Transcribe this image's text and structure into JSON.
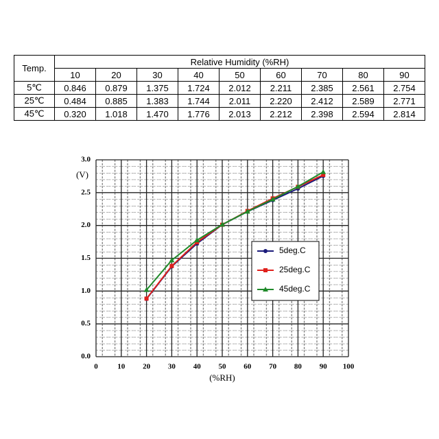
{
  "table": {
    "corner": "Temp.",
    "group_header": "Relative Humidity  (%RH)",
    "columns": [
      "10",
      "20",
      "30",
      "40",
      "50",
      "60",
      "70",
      "80",
      "90"
    ],
    "rows": [
      {
        "label": "5℃",
        "cells": [
          "0.846",
          "0.879",
          "1.375",
          "1.724",
          "2.012",
          "2.211",
          "2.385",
          "2.561",
          "2.754"
        ]
      },
      {
        "label": "25℃",
        "cells": [
          "0.484",
          "0.885",
          "1.383",
          "1.744",
          "2.011",
          "2.220",
          "2.412",
          "2.589",
          "2.771"
        ]
      },
      {
        "label": "45℃",
        "cells": [
          "0.320",
          "1.018",
          "1.470",
          "1.776",
          "2.013",
          "2.212",
          "2.398",
          "2.594",
          "2.814"
        ]
      }
    ]
  },
  "chart_data": {
    "type": "line",
    "y_label": "(V)",
    "x_label": "(%RH)",
    "x": [
      20,
      30,
      40,
      50,
      60,
      70,
      80,
      90
    ],
    "series": [
      {
        "name": "5deg.C",
        "color": "#1a1a7a",
        "marker": "circle",
        "values": [
          0.879,
          1.375,
          1.724,
          2.012,
          2.211,
          2.385,
          2.561,
          2.754
        ]
      },
      {
        "name": "25deg.C",
        "color": "#e0201c",
        "marker": "square",
        "values": [
          0.885,
          1.383,
          1.744,
          2.011,
          2.22,
          2.412,
          2.589,
          2.771
        ]
      },
      {
        "name": "45deg.C",
        "color": "#1f8a2a",
        "marker": "triangle",
        "values": [
          1.018,
          1.47,
          1.776,
          2.013,
          2.212,
          2.398,
          2.594,
          2.814
        ]
      }
    ],
    "xlim": [
      0,
      100
    ],
    "xticks": [
      0,
      10,
      20,
      30,
      40,
      50,
      60,
      70,
      80,
      90,
      100
    ],
    "ylim": [
      0,
      3
    ],
    "yticks": [
      {
        "value": 0,
        "label": "0.0"
      },
      0.5,
      {
        "value": 1,
        "label": "1.0"
      },
      1.5,
      {
        "value": 2,
        "label": "2.0"
      },
      2.5,
      {
        "value": 3,
        "label": "3.0"
      }
    ],
    "grid": true,
    "legend": "right"
  }
}
